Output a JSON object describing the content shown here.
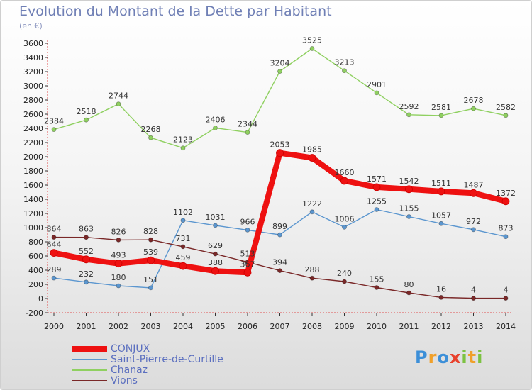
{
  "title": "Evolution du Montant de la Dette par Habitant",
  "subtitle": "(en €)",
  "logo": {
    "text": "Proxiti",
    "letters": [
      "P",
      "r",
      "o",
      "x",
      "i",
      "t",
      "i"
    ],
    "colors": [
      "#3c8fd8",
      "#f0a02a",
      "#3c8fd8",
      "#e8412c",
      "#7cc242",
      "#f0a02a",
      "#7cc242"
    ]
  },
  "chart_data": {
    "type": "line",
    "categories": [
      "2000",
      "2001",
      "2002",
      "2003",
      "2004",
      "2005",
      "2006",
      "2007",
      "2008",
      "2009",
      "2010",
      "2011",
      "2012",
      "2013",
      "2014"
    ],
    "ylim": [
      -200,
      3600
    ],
    "yticks": [
      -200,
      0,
      200,
      400,
      600,
      800,
      1000,
      1200,
      1400,
      1600,
      1800,
      2000,
      2200,
      2400,
      2600,
      2800,
      3000,
      3200,
      3400,
      3600
    ],
    "grid": false,
    "legend_position": "bottom-left",
    "series": [
      {
        "name": "CONJUX",
        "color": "#ee1111",
        "values": [
          644,
          552,
          493,
          539,
          459,
          388,
          367,
          2053,
          1985,
          1660,
          1571,
          1542,
          1511,
          1487,
          1372
        ]
      },
      {
        "name": "Saint-Pierre-de-Curtille",
        "color": "#5b96cf",
        "values": [
          289,
          232,
          180,
          151,
          1102,
          1031,
          966,
          899,
          1222,
          1006,
          1255,
          1155,
          1057,
          972,
          873
        ]
      },
      {
        "name": "Chanaz",
        "color": "#8fd060",
        "values": [
          2384,
          2518,
          2744,
          2268,
          2123,
          2406,
          2344,
          3204,
          3525,
          3213,
          2901,
          2592,
          2581,
          2678,
          2582
        ]
      },
      {
        "name": "Vions",
        "color": "#7a2828",
        "values": [
          864,
          863,
          826,
          828,
          731,
          629,
          513,
          394,
          288,
          240,
          155,
          80,
          16,
          4,
          4
        ]
      }
    ],
    "value_labels": [
      [
        "644",
        "552",
        "493",
        "539",
        "459",
        "388",
        "367",
        "2053",
        "1985",
        "1660",
        "1571",
        "1542",
        "1511",
        "1487",
        "1372"
      ],
      [
        "289",
        "232",
        "180",
        "151",
        "1102",
        "1031",
        "966",
        "899",
        "1222",
        "1006",
        "1255",
        "1155",
        "1057",
        "972",
        "873"
      ],
      [
        "2384",
        "2518",
        "2744",
        "2268",
        "2123",
        "2406",
        "2344",
        "3204",
        "3525",
        "3213",
        "2901",
        "2592",
        "2581",
        "2678",
        "2582"
      ],
      [
        "864",
        "863",
        "826",
        "828",
        "731",
        "629",
        "513",
        "394",
        "288",
        "240",
        "155",
        "80",
        "16",
        "4",
        "4"
      ]
    ]
  }
}
